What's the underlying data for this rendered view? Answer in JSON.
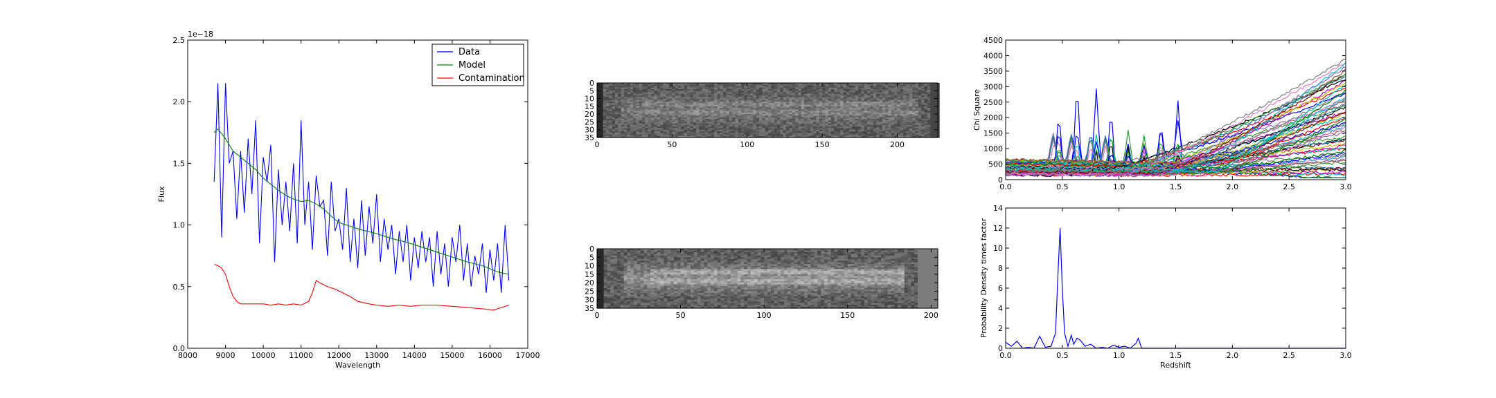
{
  "chart_data": [
    {
      "id": "spectrum",
      "type": "line",
      "xlabel": "Wavelength",
      "ylabel": "Flux",
      "offset_text": "1e−18",
      "xlim": [
        8000,
        17000
      ],
      "ylim": [
        0.0,
        2.5
      ],
      "xticks": [
        8000,
        9000,
        10000,
        11000,
        12000,
        13000,
        14000,
        15000,
        16000,
        17000
      ],
      "yticks": [
        0.0,
        0.5,
        1.0,
        1.5,
        2.0,
        2.5
      ],
      "ytick_labels": [
        "0.0",
        "0.5",
        "1.0",
        "1.5",
        "2.0",
        "2.5"
      ],
      "legend_position": "upper right",
      "series": [
        {
          "name": "Data",
          "color": "#0000ff",
          "x": [
            8700,
            8800,
            8900,
            9000,
            9100,
            9200,
            9300,
            9400,
            9500,
            9600,
            9700,
            9800,
            9900,
            10000,
            10100,
            10200,
            10300,
            10400,
            10500,
            10600,
            10700,
            10800,
            10900,
            11000,
            11100,
            11200,
            11300,
            11400,
            11500,
            11600,
            11700,
            11800,
            11900,
            12000,
            12100,
            12200,
            12300,
            12400,
            12500,
            12600,
            12700,
            12800,
            12900,
            13000,
            13100,
            13200,
            13300,
            13400,
            13500,
            13600,
            13700,
            13800,
            13900,
            14000,
            14100,
            14200,
            14300,
            14400,
            14500,
            14600,
            14700,
            14800,
            14900,
            15000,
            15100,
            15200,
            15300,
            15400,
            15500,
            15600,
            15700,
            15800,
            15900,
            16000,
            16100,
            16200,
            16300,
            16400,
            16500
          ],
          "y": [
            1.35,
            2.15,
            0.9,
            2.15,
            1.5,
            1.6,
            1.05,
            1.6,
            1.1,
            1.7,
            1.25,
            1.85,
            0.85,
            1.55,
            1.35,
            1.65,
            0.7,
            1.45,
            1.0,
            1.35,
            0.95,
            1.5,
            0.85,
            1.85,
            1.0,
            1.35,
            0.8,
            1.4,
            1.15,
            1.2,
            0.75,
            1.35,
            0.95,
            1.05,
            0.8,
            1.3,
            0.7,
            1.05,
            0.65,
            1.2,
            0.75,
            1.15,
            0.85,
            1.25,
            0.7,
            1.05,
            0.8,
            1.0,
            0.6,
            0.95,
            0.7,
            1.0,
            0.55,
            0.9,
            0.65,
            0.95,
            0.7,
            0.9,
            0.5,
            0.95,
            0.6,
            0.85,
            0.5,
            0.9,
            0.7,
            1.0,
            0.55,
            0.85,
            0.5,
            0.75,
            0.6,
            0.85,
            0.45,
            0.8,
            0.55,
            0.85,
            0.45,
            1.0,
            0.55
          ]
        },
        {
          "name": "Model",
          "color": "#008000",
          "x": [
            8700,
            8800,
            9000,
            9200,
            9400,
            9600,
            9800,
            10000,
            10200,
            10400,
            10600,
            10800,
            11000,
            11200,
            11400,
            11600,
            11800,
            12000,
            12300,
            12600,
            13000,
            13400,
            13800,
            14200,
            14600,
            15000,
            15400,
            15800,
            16200,
            16500
          ],
          "y": [
            1.75,
            1.78,
            1.7,
            1.6,
            1.55,
            1.5,
            1.45,
            1.38,
            1.33,
            1.28,
            1.24,
            1.21,
            1.19,
            1.2,
            1.17,
            1.13,
            1.07,
            1.02,
            0.99,
            0.96,
            0.93,
            0.89,
            0.86,
            0.82,
            0.78,
            0.74,
            0.7,
            0.67,
            0.62,
            0.6
          ]
        },
        {
          "name": "Contamination",
          "color": "#ff0000",
          "x": [
            8700,
            8800,
            8900,
            9000,
            9100,
            9200,
            9300,
            9400,
            9600,
            9800,
            10000,
            10200,
            10400,
            10600,
            10800,
            11000,
            11200,
            11300,
            11400,
            11500,
            11700,
            11900,
            12100,
            12300,
            12500,
            12800,
            13000,
            13300,
            13600,
            13900,
            14200,
            14600,
            15000,
            15400,
            15800,
            16100,
            16300,
            16500
          ],
          "y": [
            0.68,
            0.67,
            0.65,
            0.6,
            0.5,
            0.42,
            0.38,
            0.36,
            0.36,
            0.36,
            0.36,
            0.35,
            0.36,
            0.35,
            0.36,
            0.35,
            0.38,
            0.45,
            0.55,
            0.53,
            0.5,
            0.48,
            0.45,
            0.42,
            0.38,
            0.36,
            0.35,
            0.34,
            0.35,
            0.34,
            0.35,
            0.35,
            0.34,
            0.33,
            0.32,
            0.31,
            0.33,
            0.35
          ]
        }
      ]
    },
    {
      "id": "image-top",
      "type": "heatmap",
      "colormap": "gray",
      "xlim": [
        0,
        227
      ],
      "ylim": [
        35,
        0
      ],
      "xticks": [
        0,
        50,
        100,
        150,
        200
      ],
      "yticks": [
        0,
        5,
        10,
        15,
        20,
        25,
        30,
        35
      ]
    },
    {
      "id": "image-bottom",
      "type": "heatmap",
      "colormap": "gray",
      "xlim": [
        0,
        204
      ],
      "ylim": [
        35,
        0
      ],
      "xticks": [
        0,
        50,
        100,
        150,
        200
      ],
      "yticks": [
        0,
        5,
        10,
        15,
        20,
        25,
        30,
        35
      ]
    },
    {
      "id": "chi-square",
      "type": "line",
      "ylabel": "Chi Square",
      "xlim": [
        0.0,
        3.0
      ],
      "ylim": [
        0,
        4500
      ],
      "xticks": [
        0.0,
        0.5,
        1.0,
        1.5,
        2.0,
        2.5,
        3.0
      ],
      "xtick_labels": [
        "0.0",
        "0.5",
        "1.0",
        "1.5",
        "2.0",
        "2.5",
        "3.0"
      ],
      "yticks": [
        0,
        500,
        1000,
        1500,
        2000,
        2500,
        3000,
        3500,
        4000,
        4500
      ],
      "series_count": 60,
      "peak_redshifts": [
        0.47,
        0.63,
        0.8,
        0.93,
        1.08,
        1.22,
        1.37,
        1.52
      ]
    },
    {
      "id": "probability",
      "type": "line",
      "xlabel": "Redshift",
      "ylabel": "Probability Density times factor",
      "xlim": [
        0.0,
        3.0
      ],
      "ylim": [
        0,
        14
      ],
      "xticks": [
        0.0,
        0.5,
        1.0,
        1.5,
        2.0,
        2.5,
        3.0
      ],
      "xtick_labels": [
        "0.0",
        "0.5",
        "1.0",
        "1.5",
        "2.0",
        "2.5",
        "3.0"
      ],
      "yticks": [
        0,
        2,
        4,
        6,
        8,
        10,
        12,
        14
      ],
      "series": [
        {
          "color": "#0000ff",
          "x": [
            0.0,
            0.05,
            0.1,
            0.15,
            0.2,
            0.25,
            0.3,
            0.35,
            0.4,
            0.44,
            0.46,
            0.48,
            0.5,
            0.52,
            0.55,
            0.58,
            0.6,
            0.63,
            0.66,
            0.7,
            0.75,
            0.8,
            0.85,
            0.9,
            0.95,
            1.0,
            1.05,
            1.1,
            1.15,
            1.17,
            1.2,
            1.3,
            1.5,
            2.0,
            2.5,
            3.0
          ],
          "y": [
            0.6,
            0.2,
            0.7,
            0.0,
            0.1,
            0.0,
            1.2,
            0.1,
            0.2,
            1.5,
            7.0,
            12.0,
            6.0,
            1.5,
            0.2,
            1.3,
            0.4,
            1.0,
            0.8,
            0.2,
            0.4,
            0.0,
            0.1,
            0.0,
            0.3,
            0.1,
            0.2,
            0.0,
            0.5,
            1.0,
            0.0,
            0.0,
            0.0,
            0.0,
            0.0,
            0.0
          ]
        }
      ]
    }
  ]
}
